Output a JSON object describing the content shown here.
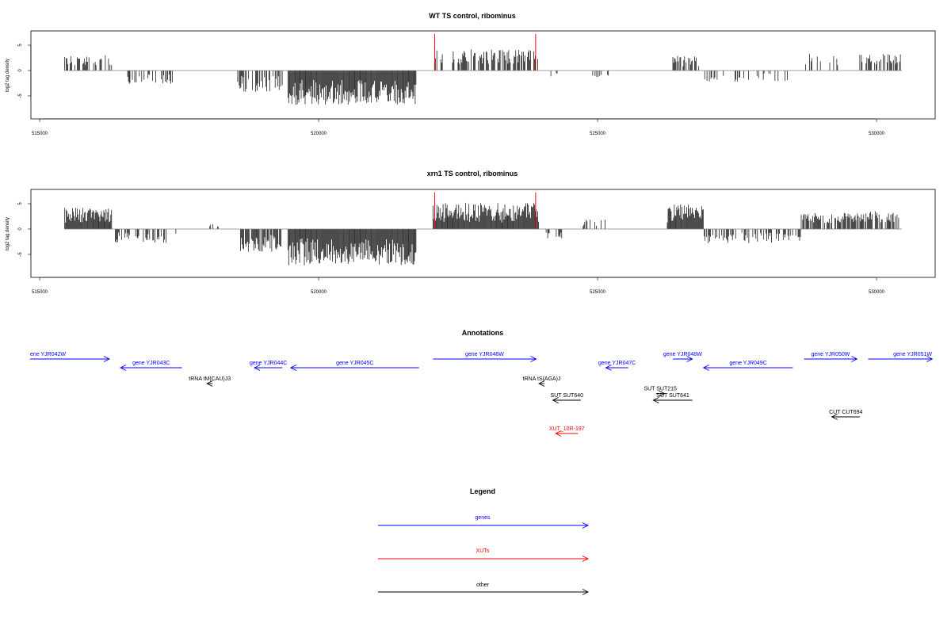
{
  "colors": {
    "genes": "#0000ff",
    "xuts": "#ff0000",
    "other": "#000000",
    "bars": "#000000",
    "highlight": "#ff0000",
    "baseline": "#808080"
  },
  "chart_data": [
    {
      "type": "bar",
      "title": "WT TS control, ribominus",
      "ylabel": "log2 tag density",
      "xlim": [
        514800,
        531000
      ],
      "ylim": [
        -9.5,
        8.5
      ],
      "xticks": [
        "515000",
        "520000",
        "525000",
        "530000"
      ],
      "yticks": [
        "5",
        "0",
        "-5"
      ],
      "highlight_positions": [
        522080,
        523890
      ],
      "highlight_height": 7.2,
      "segments": [
        {
          "start": 515450,
          "end": 516300,
          "amp": 3.0,
          "density": 0.45,
          "sign": 1
        },
        {
          "start": 516550,
          "end": 517400,
          "amp": 2.6,
          "density": 0.3,
          "sign": -1
        },
        {
          "start": 518550,
          "end": 519350,
          "amp": 4.2,
          "density": 0.6,
          "sign": -1
        },
        {
          "start": 519450,
          "end": 521750,
          "amp": 6.8,
          "density": 1.0,
          "sign": -1
        },
        {
          "start": 522050,
          "end": 523950,
          "amp": 4.2,
          "density": 0.55,
          "sign": 1
        },
        {
          "start": 524150,
          "end": 524300,
          "amp": 1.2,
          "density": 0.2,
          "sign": -1
        },
        {
          "start": 524900,
          "end": 525200,
          "amp": 1.8,
          "density": 0.25,
          "sign": -1
        },
        {
          "start": 526350,
          "end": 526850,
          "amp": 3.0,
          "density": 0.6,
          "sign": 1
        },
        {
          "start": 526850,
          "end": 528450,
          "amp": 2.2,
          "density": 0.25,
          "sign": -1
        },
        {
          "start": 528700,
          "end": 529350,
          "amp": 3.6,
          "density": 0.3,
          "sign": 1
        },
        {
          "start": 529700,
          "end": 530450,
          "amp": 3.3,
          "density": 0.45,
          "sign": 1
        }
      ]
    },
    {
      "type": "bar",
      "title": "xrn1 TS control, ribominus",
      "ylabel": "log2 tag density",
      "xlim": [
        514800,
        531000
      ],
      "ylim": [
        -9.5,
        8.5
      ],
      "xticks": [
        "515000",
        "520000",
        "525000",
        "530000"
      ],
      "yticks": [
        "5",
        "0",
        "-5"
      ],
      "highlight_positions": [
        522080,
        523890
      ],
      "highlight_height": 7.2,
      "segments": [
        {
          "start": 515450,
          "end": 516300,
          "amp": 4.2,
          "density": 1.0,
          "sign": 1
        },
        {
          "start": 516300,
          "end": 517300,
          "amp": 2.8,
          "density": 0.45,
          "sign": -1
        },
        {
          "start": 517400,
          "end": 517500,
          "amp": 1.0,
          "density": 0.3,
          "sign": -1
        },
        {
          "start": 518050,
          "end": 518250,
          "amp": 1.2,
          "density": 0.3,
          "sign": 1
        },
        {
          "start": 518600,
          "end": 519350,
          "amp": 4.5,
          "density": 0.8,
          "sign": -1
        },
        {
          "start": 519450,
          "end": 521750,
          "amp": 7.2,
          "density": 1.0,
          "sign": -1
        },
        {
          "start": 522050,
          "end": 523950,
          "amp": 5.2,
          "density": 1.0,
          "sign": 1
        },
        {
          "start": 524050,
          "end": 524500,
          "amp": 2.2,
          "density": 0.2,
          "sign": -1
        },
        {
          "start": 524700,
          "end": 525150,
          "amp": 2.2,
          "density": 0.3,
          "sign": 1
        },
        {
          "start": 526250,
          "end": 526900,
          "amp": 5.0,
          "density": 0.95,
          "sign": 1
        },
        {
          "start": 526900,
          "end": 528650,
          "amp": 2.8,
          "density": 0.5,
          "sign": -1
        },
        {
          "start": 528650,
          "end": 529850,
          "amp": 3.2,
          "density": 0.75,
          "sign": 1
        },
        {
          "start": 529850,
          "end": 530450,
          "amp": 3.5,
          "density": 0.7,
          "sign": 1
        }
      ]
    }
  ],
  "annotations": {
    "title": "Annotations",
    "features": [
      {
        "label": "ene YJR042W",
        "category": "genes",
        "start": 514800,
        "end": 516250,
        "dir": "right",
        "row": 0
      },
      {
        "label": "gene YJR043C",
        "category": "genes",
        "start": 516450,
        "end": 517550,
        "dir": "left",
        "row": 1
      },
      {
        "label": "tRNA tM(CAU)J3",
        "category": "other",
        "start": 518000,
        "end": 518100,
        "dir": "left",
        "row": 2
      },
      {
        "label": "gene YJR044C",
        "category": "genes",
        "start": 518850,
        "end": 519350,
        "dir": "left",
        "row": 1
      },
      {
        "label": "gene YJR045C",
        "category": "genes",
        "start": 519500,
        "end": 521800,
        "dir": "left",
        "row": 1
      },
      {
        "label": "gene YJR046W",
        "category": "genes",
        "start": 522050,
        "end": 523900,
        "dir": "right",
        "row": 0
      },
      {
        "label": "tRNA tS(AGA)J",
        "category": "other",
        "start": 523950,
        "end": 524050,
        "dir": "left",
        "row": 2
      },
      {
        "label": "SUT SUT640",
        "category": "other",
        "start": 524200,
        "end": 524700,
        "dir": "left",
        "row": 3
      },
      {
        "label": "XUT_10R-197",
        "category": "xuts",
        "start": 524250,
        "end": 524650,
        "dir": "left",
        "row": 5
      },
      {
        "label": "gene YJR047C",
        "category": "genes",
        "start": 525150,
        "end": 525550,
        "dir": "left",
        "row": 1
      },
      {
        "label": "SUT SUT215",
        "category": "other",
        "start": 526050,
        "end": 526200,
        "dir": "right",
        "row": 2.6
      },
      {
        "label": "SUT SUT641",
        "category": "other",
        "start": 526000,
        "end": 526700,
        "dir": "left",
        "row": 3
      },
      {
        "label": "gene YJR048W",
        "category": "genes",
        "start": 526350,
        "end": 526700,
        "dir": "right",
        "row": 0
      },
      {
        "label": "gene YJR049C",
        "category": "genes",
        "start": 526900,
        "end": 528500,
        "dir": "left",
        "row": 1
      },
      {
        "label": "gene YJR050W",
        "category": "genes",
        "start": 528700,
        "end": 529650,
        "dir": "right",
        "row": 0
      },
      {
        "label": "CUT CUT694",
        "category": "other",
        "start": 529200,
        "end": 529700,
        "dir": "left",
        "row": 4
      },
      {
        "label": "gene YJR051W",
        "category": "genes",
        "start": 529850,
        "end": 531000,
        "dir": "right",
        "row": 0
      }
    ]
  },
  "legend": {
    "title": "Legend",
    "items": [
      {
        "label": "genes",
        "category": "genes"
      },
      {
        "label": "XUTs",
        "category": "xuts"
      },
      {
        "label": "other",
        "category": "other"
      }
    ]
  }
}
